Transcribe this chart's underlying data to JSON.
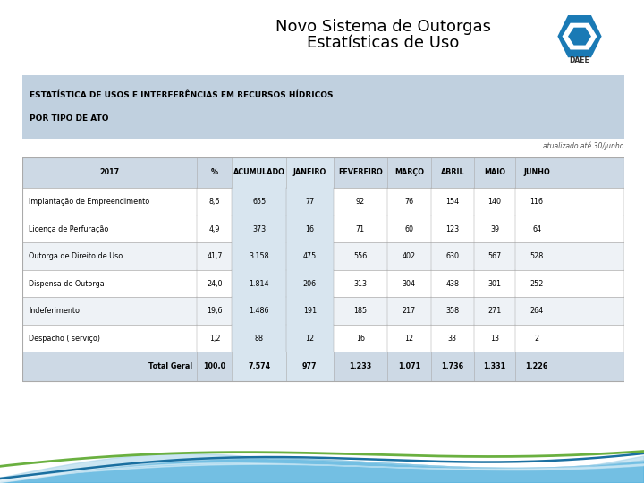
{
  "title_line1": "Novo Sistema de Outorgas",
  "title_line2": "Estatísticas de Uso",
  "daee_label": "DAEE",
  "section_title_1": "ESTATÍSTICA DE USOS E INTERFERÊNCIAS EM RECURSOS HÍDRICOS",
  "section_title_2": "POR TIPO DE ATO",
  "update_note": "atualizado até 30/junho",
  "columns": [
    "2017",
    "%",
    "ACUMULADO",
    "JANEIRO",
    "FEVEREIRO",
    "MARÇO",
    "ABRIL",
    "MAIO",
    "JUNHO"
  ],
  "rows": [
    [
      "Implantação de Empreendimento",
      "8,6",
      "655",
      "77",
      "92",
      "76",
      "154",
      "140",
      "116"
    ],
    [
      "Licença de Perfuração",
      "4,9",
      "373",
      "16",
      "71",
      "60",
      "123",
      "39",
      "64"
    ],
    [
      "Outorga de Direito de Uso",
      "41,7",
      "3.158",
      "475",
      "556",
      "402",
      "630",
      "567",
      "528"
    ],
    [
      "Dispensa de Outorga",
      "24,0",
      "1.814",
      "206",
      "313",
      "304",
      "438",
      "301",
      "252"
    ],
    [
      "Indeferimento",
      "19,6",
      "1.486",
      "191",
      "185",
      "217",
      "358",
      "271",
      "264"
    ],
    [
      "Despacho ( serviço)",
      "1,2",
      "88",
      "12",
      "16",
      "12",
      "33",
      "13",
      "2"
    ]
  ],
  "total_row": [
    "Total Geral",
    "100,0",
    "7.574",
    "977",
    "1.233",
    "1.071",
    "1.736",
    "1.331",
    "1.226"
  ],
  "header_bg": "#cdd9e5",
  "section_bg": "#c0d0df",
  "row_bg_white": "#ffffff",
  "row_bg_light": "#eef2f6",
  "total_bg": "#cdd9e5",
  "shade_col_bg": "#d8e5ef",
  "border_color": "#aaaaaa",
  "text_color": "#000000",
  "title_color": "#000000",
  "fig_bg": "#ffffff"
}
